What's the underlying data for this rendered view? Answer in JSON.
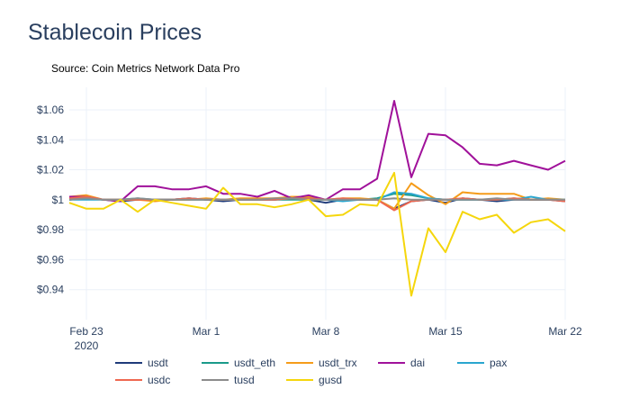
{
  "title": "Stablecoin Prices",
  "subtitle": "Source: Coin Metrics Network Data Pro",
  "chart_data": {
    "type": "line",
    "ylim": [
      0.92,
      1.075
    ],
    "xlim": [
      "2020-02-22",
      "2020-03-22"
    ],
    "grid": true,
    "legend": "bottom",
    "y_ticks": [
      {
        "value": 0.94,
        "label": "$0.94"
      },
      {
        "value": 0.96,
        "label": "$0.96"
      },
      {
        "value": 0.98,
        "label": "$0.98"
      },
      {
        "value": 1.0,
        "label": "$1"
      },
      {
        "value": 1.02,
        "label": "$1.02"
      },
      {
        "value": 1.04,
        "label": "$1.04"
      },
      {
        "value": 1.06,
        "label": "$1.06"
      }
    ],
    "x_ticks": [
      {
        "value": "2020-02-23",
        "label": "Feb 23",
        "sublabel": "2020"
      },
      {
        "value": "2020-03-01",
        "label": "Mar 1",
        "sublabel": ""
      },
      {
        "value": "2020-03-08",
        "label": "Mar 8",
        "sublabel": ""
      },
      {
        "value": "2020-03-15",
        "label": "Mar 15",
        "sublabel": ""
      },
      {
        "value": "2020-03-22",
        "label": "Mar 22",
        "sublabel": ""
      }
    ],
    "x": [
      "2020-02-22",
      "2020-02-23",
      "2020-02-24",
      "2020-02-25",
      "2020-02-26",
      "2020-02-27",
      "2020-02-28",
      "2020-02-29",
      "2020-03-01",
      "2020-03-02",
      "2020-03-03",
      "2020-03-04",
      "2020-03-05",
      "2020-03-06",
      "2020-03-07",
      "2020-03-08",
      "2020-03-09",
      "2020-03-10",
      "2020-03-11",
      "2020-03-12",
      "2020-03-13",
      "2020-03-14",
      "2020-03-15",
      "2020-03-16",
      "2020-03-17",
      "2020-03-18",
      "2020-03-19",
      "2020-03-20",
      "2020-03-21",
      "2020-03-22"
    ],
    "series": [
      {
        "name": "usdt",
        "color": "#1f3b7a",
        "values": [
          1.0,
          1.001,
          1.0,
          0.999,
          1.0,
          1.0,
          1.0,
          1.001,
          1.0,
          0.999,
          1.0,
          1.0,
          1.0,
          1.001,
          1.0,
          0.998,
          1.0,
          1.0,
          1.0,
          0.994,
          0.999,
          1.0,
          0.998,
          1.001,
          1.0,
          0.999,
          1.0,
          1.0,
          1.0,
          0.999
        ]
      },
      {
        "name": "usdt_eth",
        "color": "#1a9a8a",
        "values": [
          1.0,
          1.001,
          1.0,
          1.0,
          1.0,
          1.0,
          1.0,
          1.0,
          1.0,
          1.0,
          1.0,
          1.0,
          1.0,
          1.0,
          1.0,
          1.0,
          1.0,
          1.0,
          1.001,
          1.004,
          1.003,
          1.001,
          1.0,
          1.0,
          1.0,
          1.0,
          1.001,
          1.0,
          1.0,
          1.0
        ]
      },
      {
        "name": "usdt_trx",
        "color": "#f59c1a",
        "values": [
          1.002,
          1.003,
          1.0,
          1.0,
          1.0,
          0.999,
          1.0,
          1.0,
          1.001,
          1.0,
          1.001,
          1.001,
          1.001,
          1.002,
          1.002,
          1.0,
          1.001,
          1.001,
          1.0,
          0.994,
          1.011,
          1.003,
          0.997,
          1.005,
          1.004,
          1.004,
          1.004,
          1.0,
          1.001,
          1.0
        ]
      },
      {
        "name": "dai",
        "color": "#a0119a",
        "values": [
          1.002,
          1.002,
          1.0,
          0.999,
          1.009,
          1.009,
          1.007,
          1.007,
          1.009,
          1.004,
          1.004,
          1.002,
          1.006,
          1.001,
          1.003,
          1.0,
          1.007,
          1.007,
          1.014,
          1.066,
          1.015,
          1.044,
          1.043,
          1.035,
          1.024,
          1.023,
          1.026,
          1.023,
          1.02,
          1.026
        ]
      },
      {
        "name": "pax",
        "color": "#2aa6cf",
        "values": [
          1.0,
          1.0,
          1.0,
          1.0,
          1.001,
          1.0,
          1.0,
          1.001,
          1.0,
          1.0,
          1.0,
          1.0,
          1.0,
          1.001,
          1.001,
          1.0,
          0.999,
          1.0,
          1.0,
          1.005,
          1.004,
          1.001,
          1.0,
          1.0,
          1.0,
          1.0,
          1.0,
          1.002,
          1.0,
          1.0
        ]
      },
      {
        "name": "usdc",
        "color": "#ef6850",
        "values": [
          1.001,
          1.002,
          1.0,
          1.0,
          1.0,
          1.0,
          1.0,
          1.001,
          1.0,
          1.0,
          1.0,
          1.0,
          1.0,
          1.001,
          1.001,
          1.0,
          1.001,
          1.0,
          1.0,
          0.993,
          0.999,
          1.0,
          1.0,
          1.001,
          1.0,
          1.0,
          1.001,
          1.0,
          1.0,
          0.999
        ]
      },
      {
        "name": "tusd",
        "color": "#8c8c8c",
        "values": [
          1.0,
          1.001,
          1.0,
          1.0,
          1.001,
          1.0,
          1.0,
          1.0,
          1.0,
          1.0,
          1.0,
          1.0,
          1.001,
          1.001,
          1.0,
          1.0,
          1.0,
          1.0,
          1.0,
          1.001,
          1.0,
          1.0,
          1.0,
          1.0,
          1.0,
          1.001,
          1.0,
          1.0,
          1.0,
          1.0
        ]
      },
      {
        "name": "gusd",
        "color": "#f5d60c",
        "values": [
          0.998,
          0.994,
          0.994,
          1.0,
          0.992,
          1.0,
          0.998,
          0.996,
          0.994,
          1.008,
          0.997,
          0.997,
          0.995,
          0.997,
          1.0,
          0.989,
          0.99,
          0.997,
          0.996,
          1.018,
          0.936,
          0.981,
          0.965,
          0.992,
          0.987,
          0.99,
          0.978,
          0.985,
          0.987,
          0.979
        ]
      }
    ]
  }
}
